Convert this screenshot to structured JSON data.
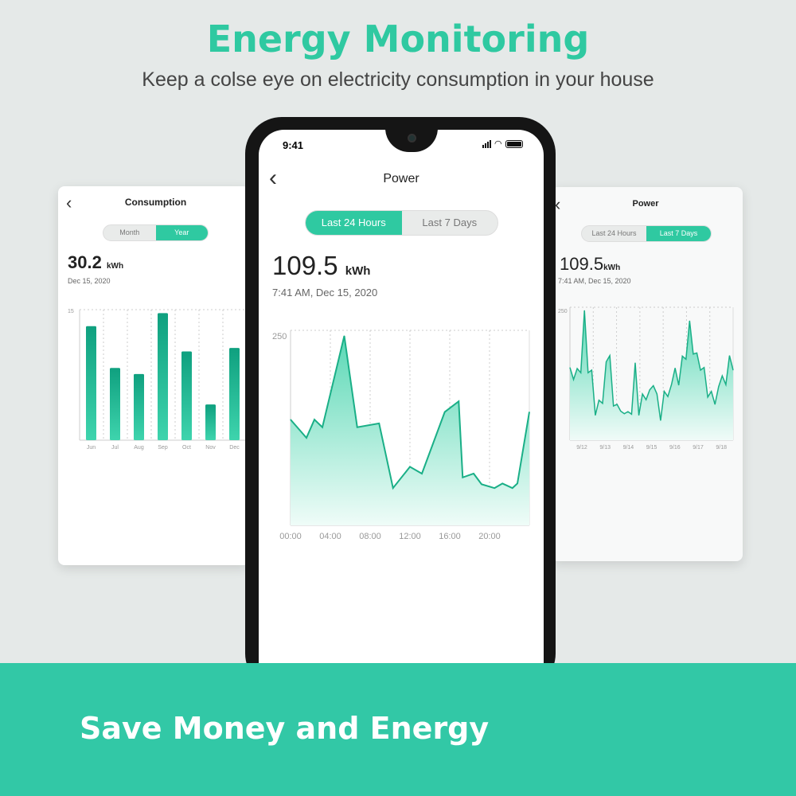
{
  "header": {
    "title": "Energy Monitoring",
    "subtitle": "Keep a colse eye on electricity consumption in your house"
  },
  "footer": {
    "text": "Save Money and Energy"
  },
  "accent": "#2fc9a1",
  "left_card": {
    "title": "Consumption",
    "tabs": [
      "Month",
      "Year"
    ],
    "active_tab": 1,
    "value": "30.2",
    "unit": "kWh",
    "date": "Dec 15, 2020"
  },
  "phone": {
    "status": {
      "time": "9:41"
    },
    "title": "Power",
    "tabs": [
      "Last 24 Hours",
      "Last 7 Days"
    ],
    "active_tab": 0,
    "value": "109.5",
    "unit": "kWh",
    "date": "7:41 AM, Dec 15, 2020"
  },
  "right_card": {
    "title": "Power",
    "tabs": [
      "Last 24 Hours",
      "Last 7 Days"
    ],
    "active_tab": 1,
    "value": "109.5",
    "unit": "kWh",
    "date": "7:41 AM, Dec 15, 2020"
  },
  "chart_data": [
    {
      "type": "bar",
      "categories": [
        "Jun",
        "Jul",
        "Aug",
        "Sep",
        "Oct",
        "Nov",
        "Dec"
      ],
      "values": [
        13.1,
        8.3,
        7.6,
        14.6,
        10.2,
        4.1,
        10.6
      ],
      "ylim": [
        0,
        15
      ],
      "yticks": [
        "15"
      ],
      "grid": true
    },
    {
      "type": "area",
      "x": [
        0,
        1.6,
        2.4,
        3.2,
        5.4,
        6.7,
        8.9,
        10.3,
        12,
        13.2,
        15.5,
        16.9,
        17.3,
        18.4,
        19.2,
        20.5,
        21.3,
        22.3,
        22.8,
        24
      ],
      "y": [
        139,
        115,
        139,
        129,
        249,
        129,
        134,
        49,
        77,
        68,
        149,
        163,
        63,
        68,
        54,
        49,
        55,
        49,
        55,
        149
      ],
      "xlim": [
        0,
        24
      ],
      "ylim": [
        0,
        250
      ],
      "xticks": [
        "00:00",
        "04:00",
        "08:00",
        "12:00",
        "16:00",
        "20:00"
      ],
      "yticks": [
        "250"
      ],
      "grid": true
    },
    {
      "type": "area",
      "values": [
        140,
        117,
        138,
        130,
        250,
        130,
        135,
        48,
        77,
        71,
        151,
        163,
        66,
        69,
        56,
        51,
        55,
        50,
        149,
        48,
        89,
        78,
        97,
        105,
        89,
        38,
        94,
        84,
        107,
        139,
        106,
        162,
        156,
        230,
        166,
        168,
        135,
        140,
        83,
        94,
        69,
        103,
        124,
        107,
        163,
        135
      ],
      "ylim": [
        0,
        250
      ],
      "xticks": [
        "9/12",
        "9/13",
        "9/14",
        "9/15",
        "9/16",
        "9/17",
        "9/18"
      ],
      "yticks": [
        "250"
      ],
      "grid": true
    }
  ]
}
